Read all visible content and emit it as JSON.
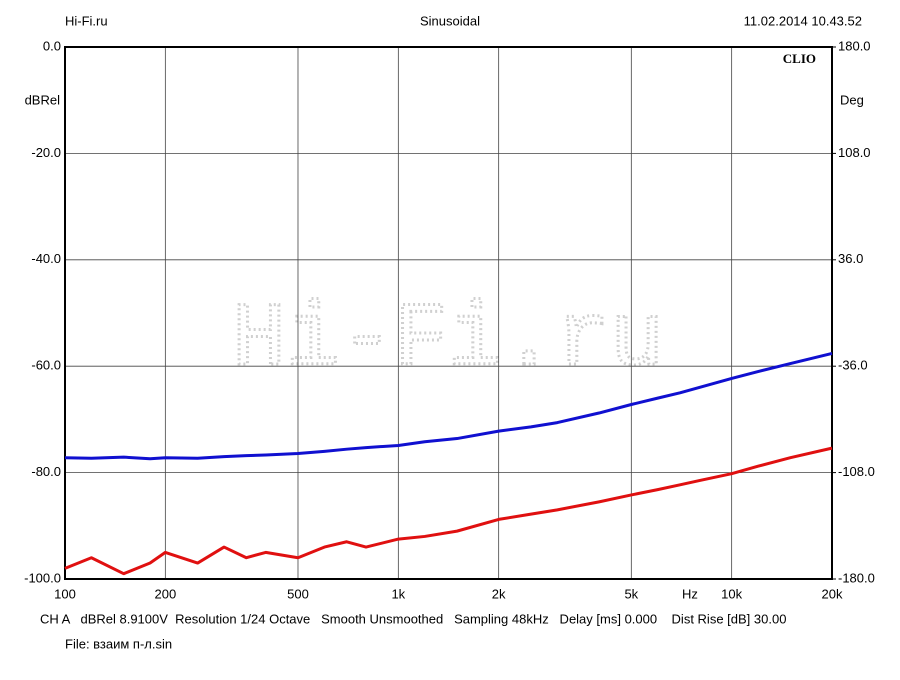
{
  "chart_data": {
    "type": "line",
    "header_left": "Hi-Fi.ru",
    "title": "Sinusoidal",
    "header_right": "11.02.2014 10.43.52",
    "brand": "CLIO",
    "watermark": "Hi-Fi.ru",
    "ylabel": "dBRel",
    "y2label": "Deg",
    "xlabel": "Hz",
    "x": [
      100,
      120,
      150,
      180,
      200,
      250,
      300,
      350,
      400,
      500,
      600,
      700,
      800,
      1000,
      1200,
      1500,
      2000,
      2500,
      3000,
      4000,
      5000,
      6000,
      7000,
      8000,
      10000,
      12000,
      15000,
      20000
    ],
    "series": [
      {
        "color": "#1010d0",
        "values": [
          -77.2,
          -77.3,
          -77.1,
          -77.4,
          -77.2,
          -77.3,
          -77,
          -76.8,
          -76.7,
          -76.4,
          -76,
          -75.6,
          -75.3,
          -74.9,
          -74.2,
          -73.6,
          -72.2,
          -71.4,
          -70.6,
          -68.8,
          -67.2,
          -66,
          -65,
          -64,
          -62.3,
          -61,
          -59.5,
          -57.6
        ]
      },
      {
        "color": "#e01010",
        "values": [
          -98,
          -96,
          -99,
          -97,
          -95,
          -97,
          -94,
          -96,
          -95,
          -96,
          -94,
          -93,
          -94,
          -92.5,
          -92,
          -91,
          -88.8,
          -87.8,
          -87,
          -85.5,
          -84.2,
          -83.2,
          -82.3,
          -81.5,
          -80.2,
          -78.8,
          -77.2,
          -75.4
        ]
      }
    ],
    "xlim": [
      100,
      20000
    ],
    "xscale": "log",
    "xticks": [
      100,
      200,
      500,
      {
        "value": 1000,
        "label": "1k"
      },
      {
        "value": 2000,
        "label": "2k"
      },
      {
        "value": 5000,
        "label": "5k"
      },
      {
        "value": 10000,
        "label": "10k"
      },
      {
        "value": 20000,
        "label": "20k"
      }
    ],
    "ylim": [
      -100,
      0
    ],
    "yticks": [
      {
        "value": -100,
        "label": "-100.0"
      },
      {
        "value": -80,
        "label": "-80.0"
      },
      {
        "value": -60,
        "label": "-60.0"
      },
      {
        "value": -40,
        "label": "-40.0"
      },
      {
        "value": -20,
        "label": "-20.0"
      },
      {
        "value": 0,
        "label": "0.0"
      }
    ],
    "y2lim": [
      -180,
      180
    ],
    "y2ticks": [
      {
        "value": -180,
        "label": "-180.0"
      },
      {
        "value": -108,
        "label": "-108.0"
      },
      {
        "value": -36,
        "label": "-36.0"
      },
      {
        "value": 36,
        "label": "36.0"
      },
      {
        "value": 108,
        "label": "108.0"
      },
      {
        "value": 180,
        "label": "180.0"
      }
    ],
    "grid": true,
    "footer": "CH A   dBRel 8.9100V  Resolution 1/24 Octave   Smooth Unsmoothed   Sampling 48kHz   Delay [ms] 0.000    Dist Rise [dB] 30.00",
    "file": "File: взаим п-л.sin"
  }
}
